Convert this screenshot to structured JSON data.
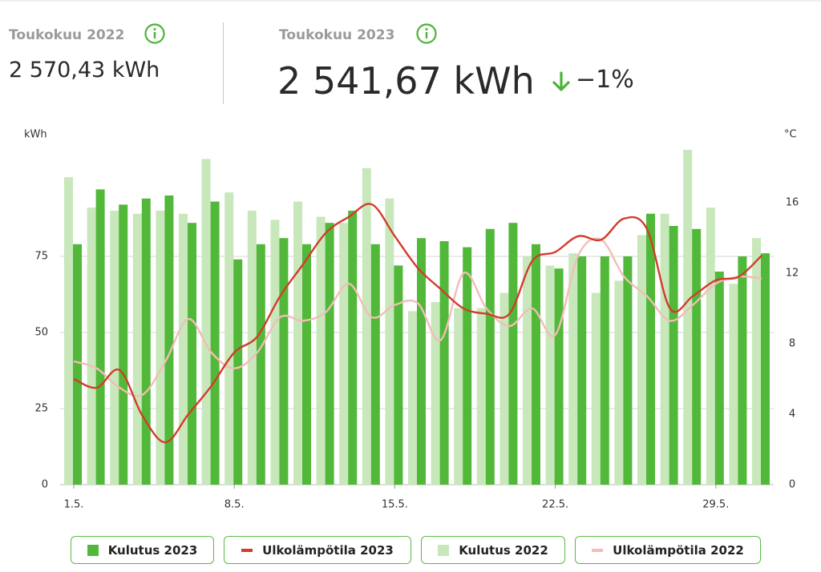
{
  "header": {
    "previous": {
      "label": "Toukokuu 2022",
      "value": "2 570,43 kWh"
    },
    "current": {
      "label": "Toukokuu 2023",
      "value": "2 541,67 kWh",
      "change": "−1%"
    }
  },
  "chart_data": {
    "type": "bar",
    "ylabel": "kWh",
    "y2label": "°C",
    "categories": [
      "1.5.",
      null,
      null,
      null,
      null,
      null,
      null,
      "8.5.",
      null,
      null,
      null,
      null,
      null,
      null,
      "15.5.",
      null,
      null,
      null,
      null,
      null,
      null,
      "22.5.",
      null,
      null,
      null,
      null,
      null,
      null,
      "29.5.",
      null,
      null
    ],
    "ylim": [
      0,
      110
    ],
    "yticks": [
      0,
      25,
      50,
      75
    ],
    "y2lim": [
      0,
      19
    ],
    "y2ticks": [
      0,
      4,
      8,
      12,
      16
    ],
    "grid": true,
    "series": [
      {
        "name": "Kulutus 2023",
        "type": "bar",
        "color": "#52b83a",
        "values": [
          79,
          97,
          92,
          94,
          95,
          86,
          93,
          74,
          79,
          81,
          79,
          86,
          90,
          79,
          72,
          81,
          80,
          78,
          84,
          86,
          79,
          71,
          75,
          75,
          75,
          89,
          85,
          84,
          70,
          75,
          76
        ]
      },
      {
        "name": "Ulkolämpötila 2023",
        "type": "line",
        "axis": "y2",
        "color": "#d23c2a",
        "values": [
          6.0,
          5.5,
          6.5,
          3.9,
          2.4,
          4.0,
          5.6,
          7.5,
          8.4,
          10.7,
          12.5,
          14.3,
          15.2,
          15.9,
          14.1,
          12.3,
          11.1,
          10.0,
          9.7,
          9.7,
          12.7,
          13.2,
          14.1,
          13.9,
          15.1,
          14.5,
          10.0,
          10.7,
          11.6,
          11.8,
          13.0
        ]
      },
      {
        "name": "Kulutus 2022",
        "type": "bar",
        "color": "#c8e8bc",
        "values": [
          101,
          91,
          90,
          89,
          90,
          89,
          107,
          96,
          90,
          87,
          93,
          88,
          86,
          104,
          94,
          57,
          60,
          58,
          58,
          63,
          75,
          72,
          76,
          63,
          67,
          82,
          89,
          110,
          91,
          66,
          81
        ]
      },
      {
        "name": "Ulkolämpötila 2022",
        "type": "line",
        "axis": "y2",
        "color": "#f2bdb8",
        "values": [
          7.0,
          6.6,
          5.5,
          5.1,
          7.0,
          9.4,
          7.5,
          6.6,
          7.5,
          9.5,
          9.3,
          9.8,
          11.4,
          9.5,
          10.2,
          10.3,
          8.2,
          12.0,
          10.0,
          9.0,
          10.0,
          8.5,
          13.0,
          13.9,
          11.8,
          10.7,
          9.3,
          10.2,
          11.4,
          11.8,
          11.7
        ]
      }
    ]
  }
}
